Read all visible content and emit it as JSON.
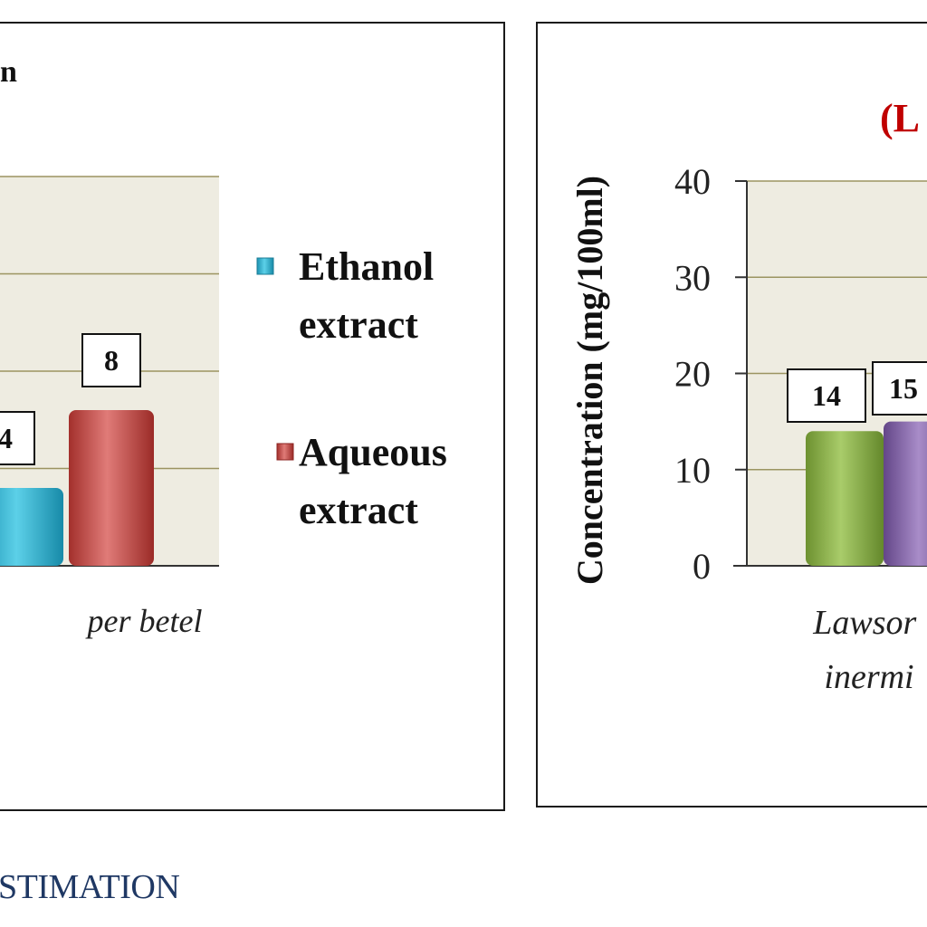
{
  "chart_data": [
    {
      "type": "bar",
      "title": "n",
      "categories": [
        "per betel"
      ],
      "series": [
        {
          "name": "Ethanol extract",
          "values": [
            4
          ],
          "color": "#2fb3d0"
        },
        {
          "name": "Aqueous extract",
          "values": [
            8
          ],
          "color": "#c0504d"
        }
      ],
      "data_labels": [
        "4",
        "8"
      ],
      "legend": {
        "placement": "right",
        "entries": [
          "Ethanol extract",
          "Aqueous extract"
        ]
      },
      "grid": true
    },
    {
      "type": "bar",
      "title": "(L",
      "ylabel": "Concentration (mg/100ml)",
      "yticks": [
        "0",
        "10",
        "20",
        "30",
        "40"
      ],
      "ylim": [
        0,
        40
      ],
      "categories": [
        "Lawsor inermi"
      ],
      "series": [
        {
          "name": "",
          "values": [
            14
          ],
          "color": "#8db04d"
        },
        {
          "name": "",
          "values": [
            15
          ],
          "color": "#8064a2"
        }
      ],
      "data_labels": [
        "14",
        "15"
      ],
      "grid": true
    }
  ],
  "caption": "STIMATION"
}
